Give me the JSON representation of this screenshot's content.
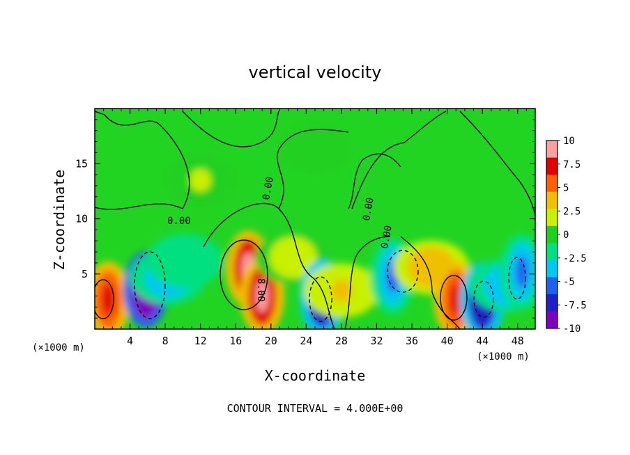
{
  "chart_data": {
    "type": "heatmap",
    "title": "vertical velocity",
    "xlabel": "X-coordinate",
    "ylabel": "Z-coordinate",
    "x_unit": "(×1000 m)",
    "x_unit_right": "(×1000 m)",
    "xlim": [
      0,
      50
    ],
    "ylim": [
      0,
      20
    ],
    "x_ticks": [
      "4",
      "8",
      "12",
      "16",
      "20",
      "24",
      "28",
      "32",
      "36",
      "40",
      "44",
      "48"
    ],
    "y_ticks": [
      "5",
      "10",
      "15"
    ],
    "colorbar": {
      "ticks": [
        "10",
        "7.5",
        "5",
        "2.5",
        "0",
        "-2.5",
        "-5",
        "-7.5",
        "-10"
      ],
      "range": [
        -10,
        10
      ],
      "colors": [
        "#8000c0",
        "#2020c8",
        "#2060f0",
        "#00c8f0",
        "#00e080",
        "#20d020",
        "#c8f000",
        "#f0c000",
        "#ff6000",
        "#e00000",
        "#ffa0a0"
      ]
    },
    "contour_labels": [
      "0.00",
      "0.00",
      "0.00",
      "0.00",
      "8.00"
    ],
    "contour_interval_text": "CONTOUR INTERVAL = 4.000E+00",
    "features": [
      {
        "x": 1.5,
        "z": 2.7,
        "value": 8
      },
      {
        "x": 5.8,
        "z": 3.6,
        "value": -12
      },
      {
        "x": 8.3,
        "z": 4.7,
        "value": -5
      },
      {
        "x": 10.2,
        "z": 6.2,
        "value": -3
      },
      {
        "x": 17.4,
        "z": 5.5,
        "value": 11
      },
      {
        "x": 19.0,
        "z": 3.0,
        "value": 9
      },
      {
        "x": 22.5,
        "z": 6.5,
        "value": 2
      },
      {
        "x": 25.8,
        "z": 2.8,
        "value": -9
      },
      {
        "x": 28.0,
        "z": 3.5,
        "value": 3
      },
      {
        "x": 33.8,
        "z": 4.8,
        "value": -6
      },
      {
        "x": 38.2,
        "z": 5.6,
        "value": 4
      },
      {
        "x": 41.0,
        "z": 2.7,
        "value": 8
      },
      {
        "x": 44.0,
        "z": 2.6,
        "value": -9
      },
      {
        "x": 46.8,
        "z": 4.0,
        "value": -4
      },
      {
        "x": 48.5,
        "z": 5.2,
        "value": -6
      },
      {
        "x": 12.0,
        "z": 13.5,
        "value": 1
      },
      {
        "x": 25.0,
        "z": 16.5,
        "value": -1
      }
    ]
  }
}
